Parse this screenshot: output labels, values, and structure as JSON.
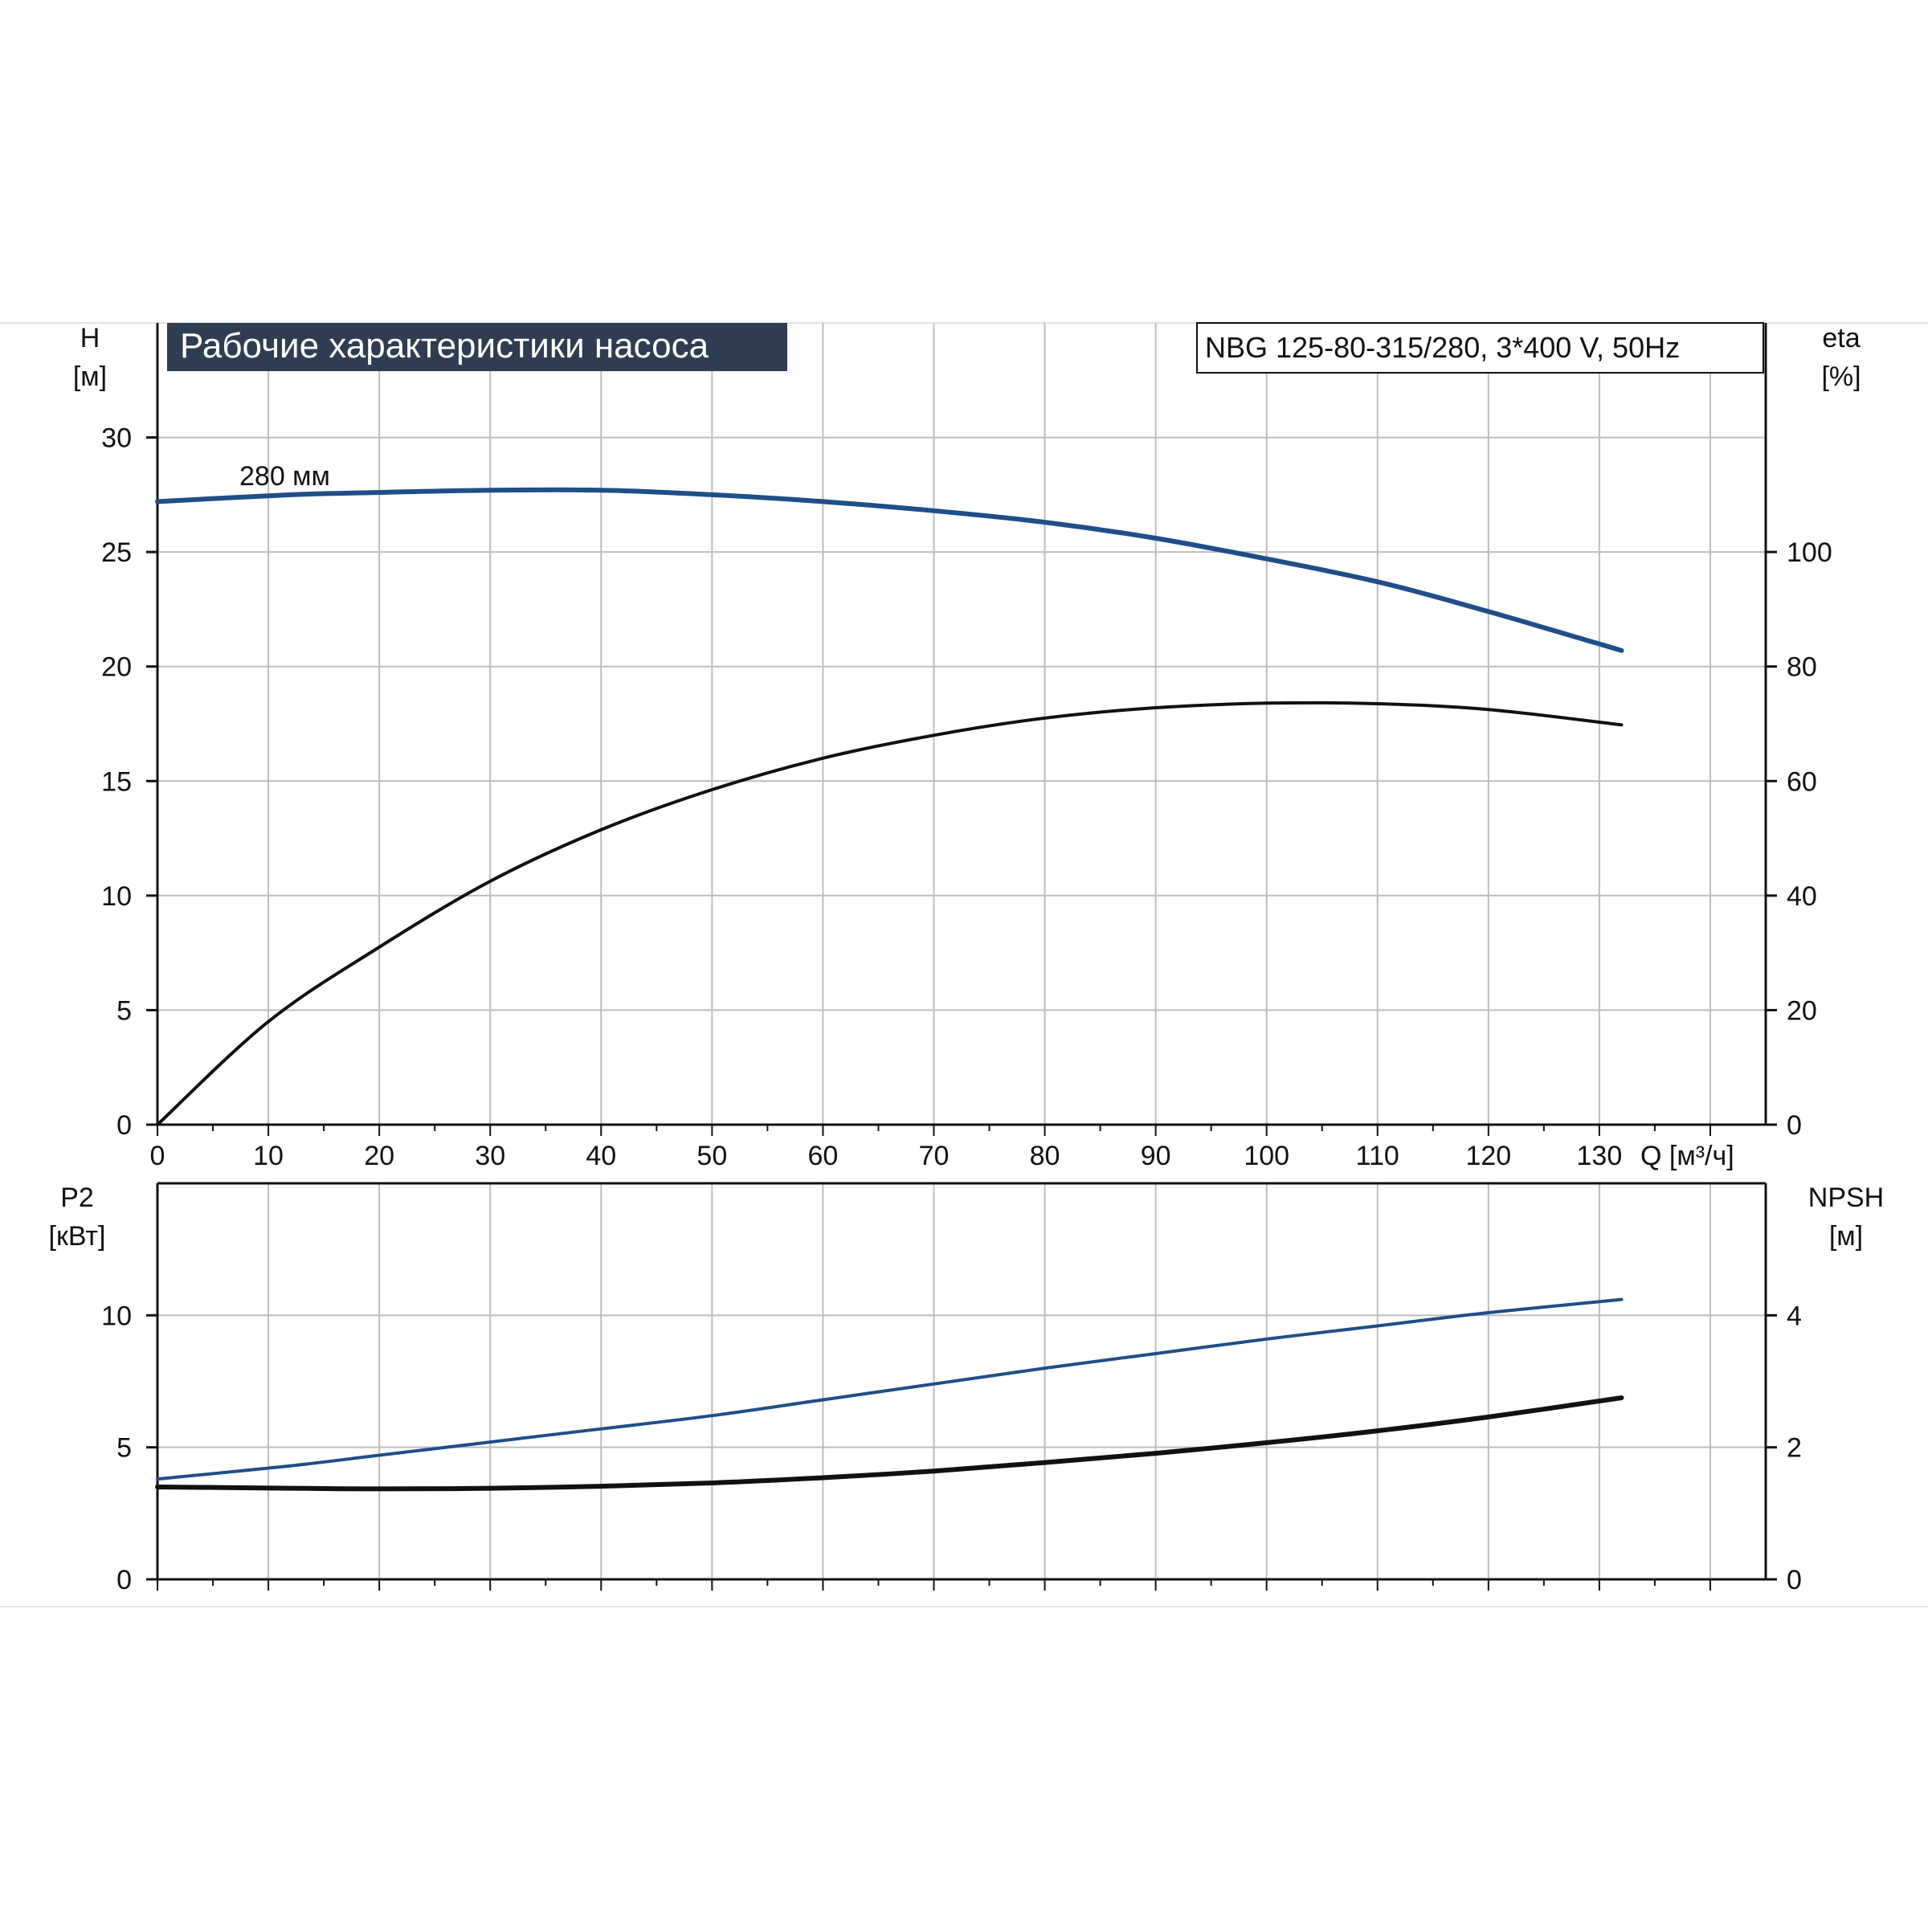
{
  "header": {
    "title": "Рабочие характеристики насоса",
    "model": "NBG 125-80-315/280, 3*400 V, 50Hz"
  },
  "colors": {
    "blue": "#1f4e89",
    "black": "#111111",
    "grid": "#bdbdbd",
    "title_bg": "#2f3d52"
  },
  "chart_data": [
    {
      "type": "line",
      "name": "upper",
      "x_label": "Q [м³/ч]",
      "xlim": [
        0,
        145
      ],
      "x_ticks": [
        0,
        10,
        20,
        30,
        40,
        50,
        60,
        70,
        80,
        90,
        100,
        110,
        120,
        130
      ],
      "y_left": {
        "label_top": "H",
        "label_unit": "[м]",
        "lim": [
          0,
          35
        ],
        "ticks": [
          0,
          5,
          10,
          15,
          20,
          25,
          30
        ]
      },
      "y_right": {
        "label_top": "eta",
        "label_unit": "[%]",
        "lim": [
          0,
          140
        ],
        "ticks": [
          0,
          20,
          40,
          60,
          80,
          100
        ]
      },
      "annotation": "280 мм",
      "series": [
        {
          "axis": "left",
          "color": "blue",
          "points": [
            [
              0,
              27.2
            ],
            [
              12,
              27.5
            ],
            [
              20,
              27.6
            ],
            [
              30,
              27.7
            ],
            [
              40,
              27.7
            ],
            [
              50,
              27.5
            ],
            [
              60,
              27.2
            ],
            [
              70,
              26.8
            ],
            [
              80,
              26.3
            ],
            [
              90,
              25.6
            ],
            [
              100,
              24.7
            ],
            [
              110,
              23.7
            ],
            [
              120,
              22.4
            ],
            [
              132,
              20.7
            ]
          ]
        },
        {
          "axis": "right",
          "color": "black",
          "points": [
            [
              0,
              0
            ],
            [
              10,
              18
            ],
            [
              20,
              31
            ],
            [
              30,
              42.5
            ],
            [
              40,
              51.5
            ],
            [
              50,
              58.5
            ],
            [
              60,
              64
            ],
            [
              70,
              68
            ],
            [
              80,
              71
            ],
            [
              90,
              72.8
            ],
            [
              100,
              73.6
            ],
            [
              110,
              73.5
            ],
            [
              120,
              72.5
            ],
            [
              132,
              69.8
            ]
          ]
        }
      ]
    },
    {
      "type": "line",
      "name": "lower",
      "xlim": [
        0,
        145
      ],
      "y_left": {
        "label_top": "P2",
        "label_unit": "[кВт]",
        "lim": [
          0,
          15
        ],
        "ticks": [
          0,
          5,
          10
        ]
      },
      "y_right": {
        "label_top": "NPSH",
        "label_unit": "[м]",
        "lim": [
          0,
          6
        ],
        "ticks": [
          0,
          2,
          4
        ]
      },
      "series": [
        {
          "axis": "left",
          "color": "blue",
          "points": [
            [
              0,
              3.8
            ],
            [
              12,
              4.3
            ],
            [
              20,
              4.7
            ],
            [
              30,
              5.2
            ],
            [
              40,
              5.7
            ],
            [
              50,
              6.2
            ],
            [
              60,
              6.8
            ],
            [
              70,
              7.4
            ],
            [
              80,
              8.0
            ],
            [
              90,
              8.55
            ],
            [
              100,
              9.1
            ],
            [
              110,
              9.6
            ],
            [
              120,
              10.1
            ],
            [
              132,
              10.6
            ]
          ]
        },
        {
          "axis": "right",
          "color": "black",
          "points": [
            [
              0,
              1.4
            ],
            [
              12,
              1.38
            ],
            [
              20,
              1.37
            ],
            [
              30,
              1.38
            ],
            [
              40,
              1.41
            ],
            [
              50,
              1.46
            ],
            [
              60,
              1.54
            ],
            [
              70,
              1.64
            ],
            [
              80,
              1.77
            ],
            [
              90,
              1.91
            ],
            [
              100,
              2.07
            ],
            [
              110,
              2.25
            ],
            [
              120,
              2.46
            ],
            [
              132,
              2.75
            ]
          ]
        }
      ]
    }
  ]
}
